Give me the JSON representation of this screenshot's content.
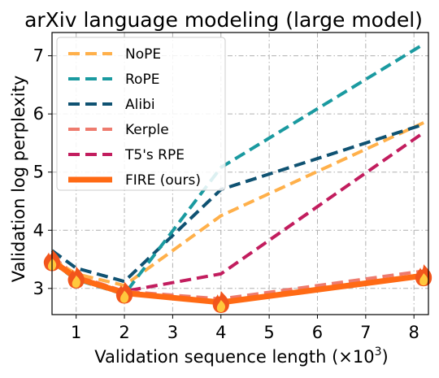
{
  "chart_data": {
    "type": "line",
    "title": "arXiv language modeling (large model)",
    "xlabel": "Validation sequence length (×10",
    "xlabel_superscript": "3",
    "xlabel_suffix": ")",
    "ylabel": "Validation log perplexity",
    "x_ticks": [
      "1",
      "2",
      "3",
      "4",
      "5",
      "6",
      "7",
      "8"
    ],
    "y_ticks": [
      "3",
      "4",
      "5",
      "6",
      "7"
    ],
    "xlim": [
      0.5,
      8.3
    ],
    "ylim": [
      2.55,
      7.4
    ],
    "grid": true,
    "legend_position": "top-left",
    "series": [
      {
        "name": "NoPE",
        "color": "#ffb04a",
        "style": "dashed",
        "x": [
          0.5,
          1,
          2,
          4,
          8.2
        ],
        "y": [
          3.5,
          3.25,
          3.05,
          4.25,
          5.85
        ]
      },
      {
        "name": "RoPE",
        "color": "#1a9aa0",
        "style": "dashed",
        "x": [
          0.5,
          1,
          2,
          4,
          8.2
        ],
        "y": [
          3.45,
          3.15,
          2.9,
          5.08,
          7.2
        ]
      },
      {
        "name": "Alibi",
        "color": "#0f5272",
        "style": "dashed",
        "x": [
          0.5,
          1,
          2,
          4,
          8.2
        ],
        "y": [
          3.65,
          3.35,
          3.12,
          4.7,
          5.82
        ]
      },
      {
        "name": "Kerple",
        "color": "#ee7b6e",
        "style": "dashed",
        "x": [
          0.5,
          1,
          2,
          4,
          8.2
        ],
        "y": [
          3.55,
          3.22,
          2.95,
          2.82,
          3.3
        ]
      },
      {
        "name": "T5's RPE",
        "color": "#c21d5e",
        "style": "dashed",
        "x": [
          0.5,
          1,
          2,
          4,
          8.2
        ],
        "y": [
          3.5,
          3.2,
          2.95,
          3.25,
          5.68
        ]
      },
      {
        "name": "FIRE (ours)",
        "color": "#ff6a14",
        "style": "solid",
        "markers": "fire-icon",
        "x": [
          0.5,
          1,
          2,
          4,
          8.2
        ],
        "y": [
          3.48,
          3.18,
          2.92,
          2.76,
          3.22
        ]
      }
    ]
  }
}
